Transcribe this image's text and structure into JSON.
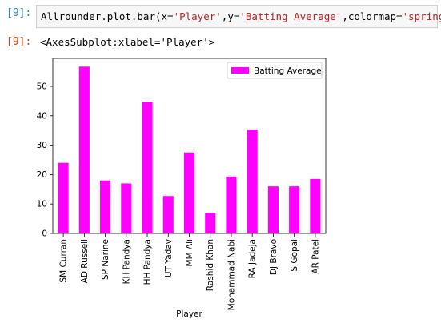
{
  "cell": {
    "in_prompt": "[9]:",
    "code": {
      "prefix": "Allrounder.plot.bar(x=",
      "x_val": "'Player'",
      "sep1": ",y=",
      "y_val": "'Batting Average'",
      "sep2": ",colormap=",
      "cmap_val": "'spring'",
      "suffix": ")"
    },
    "out_prompt": "[9]:",
    "output": "<AxesSubplot:xlabel='Player'>"
  },
  "chart_data": {
    "type": "bar",
    "categories": [
      "SM Curran",
      "AD Russell",
      "SP Narine",
      "KH Pandya",
      "HH Pandya",
      "UT Yadav",
      "MM Ali",
      "Rashid Khan",
      "Mohammad Nabi",
      "RA Jadeja",
      "DJ Bravo",
      "S Gopal",
      "AR Patel"
    ],
    "series": [
      {
        "name": "Batting Average",
        "values": [
          24,
          56.7,
          18,
          17,
          44.7,
          12.7,
          27.5,
          7,
          19.3,
          35.3,
          16,
          16,
          18.5
        ],
        "color": "#ff00ff"
      }
    ],
    "xlabel": "Player",
    "ylabel": "",
    "ylim": [
      0,
      59.5
    ],
    "yticks": [
      0,
      10,
      20,
      30,
      40,
      50
    ],
    "grid": false,
    "legend_position": "top-right"
  }
}
